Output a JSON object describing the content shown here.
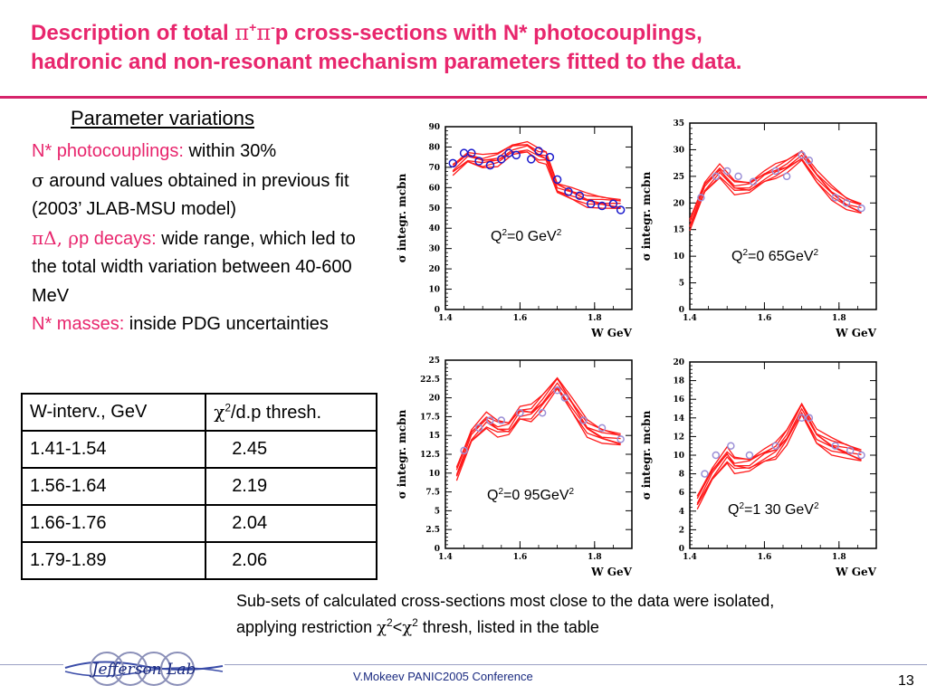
{
  "title": {
    "line1_pre": "Description of total ",
    "pi": "π",
    "plus": "+",
    "minus": "-",
    "line1_post": "p cross-sections with  N* photocouplings,",
    "line2": "hadronic and non-resonant mechanism parameters fitted to the data."
  },
  "params": {
    "heading": "Parameter variations",
    "photocouplings_label": "N* photocouplings:",
    "photocouplings_value": " within 30%",
    "sigma_symbol": "σ",
    "sigma_text": " around values obtained in previous fit (2003’ JLAB-MSU model)",
    "decays_label_symbols": "πΔ, ρ",
    "decays_label_rest": "p decays:",
    "decays_value": " wide range, which led to the total width variation between 40-600 MeV",
    "masses_label": "N* masses:",
    "masses_value": " inside PDG uncertainties"
  },
  "table": {
    "header": {
      "col1": "W-interv., GeV",
      "chi": "χ",
      "sq": "2",
      "col2_rest": "/d.p thresh."
    },
    "rows": [
      {
        "interval": "1.41-1.54",
        "thresh": "2.45"
      },
      {
        "interval": "1.56-1.64",
        "thresh": "2.19"
      },
      {
        "interval": "1.66-1.76",
        "thresh": "2.04"
      },
      {
        "interval": "1.79-1.89",
        "thresh": "2.06"
      }
    ]
  },
  "chart_data": [
    {
      "type": "line",
      "ylabel": "σ integr. mcbn",
      "xlabel": "W GeV",
      "ylim": [
        0,
        90
      ],
      "xlim": [
        1.4,
        1.9
      ],
      "yticks": [
        "0",
        "10",
        "20",
        "30",
        "40",
        "50",
        "60",
        "70",
        "80",
        "90"
      ],
      "xticks": [
        "1.4",
        "1.6",
        "1.8"
      ],
      "label_pre": "Q",
      "label_post": "=0 GeV",
      "label_tail": "2",
      "data_points": [
        [
          1.42,
          72
        ],
        [
          1.45,
          77
        ],
        [
          1.47,
          77
        ],
        [
          1.49,
          73
        ],
        [
          1.52,
          71
        ],
        [
          1.55,
          74
        ],
        [
          1.57,
          77
        ],
        [
          1.59,
          76
        ],
        [
          1.63,
          74
        ],
        [
          1.65,
          78
        ],
        [
          1.68,
          75
        ],
        [
          1.7,
          64
        ],
        [
          1.73,
          58
        ],
        [
          1.76,
          56
        ],
        [
          1.79,
          52
        ],
        [
          1.82,
          51
        ],
        [
          1.85,
          52
        ],
        [
          1.87,
          49
        ]
      ],
      "curve": [
        [
          1.42,
          69
        ],
        [
          1.46,
          75
        ],
        [
          1.5,
          73
        ],
        [
          1.54,
          74
        ],
        [
          1.58,
          79
        ],
        [
          1.62,
          80
        ],
        [
          1.65,
          76
        ],
        [
          1.67,
          75
        ],
        [
          1.7,
          60
        ],
        [
          1.74,
          57
        ],
        [
          1.78,
          54
        ],
        [
          1.82,
          53
        ],
        [
          1.87,
          52
        ]
      ],
      "spread": 3
    },
    {
      "type": "line",
      "ylabel": "σ integr. mcbn",
      "xlabel": "W GeV",
      "ylim": [
        0,
        35
      ],
      "xlim": [
        1.4,
        1.9
      ],
      "yticks": [
        "0",
        "5",
        "10",
        "15",
        "20",
        "25",
        "30",
        "35"
      ],
      "xticks": [
        "1.4",
        "1.6",
        "1.8"
      ],
      "label_pre": "Q",
      "label_post": "=0 65GeV",
      "label_tail": "2",
      "data_points": [
        [
          1.43,
          21
        ],
        [
          1.47,
          25
        ],
        [
          1.5,
          26
        ],
        [
          1.53,
          25
        ],
        [
          1.57,
          24
        ],
        [
          1.63,
          26
        ],
        [
          1.66,
          25
        ],
        [
          1.7,
          29
        ],
        [
          1.72,
          28
        ],
        [
          1.79,
          21
        ],
        [
          1.82,
          20
        ],
        [
          1.86,
          19
        ]
      ],
      "curve": [
        [
          1.4,
          16
        ],
        [
          1.44,
          23
        ],
        [
          1.48,
          26
        ],
        [
          1.52,
          23
        ],
        [
          1.56,
          23
        ],
        [
          1.6,
          25
        ],
        [
          1.63,
          26
        ],
        [
          1.66,
          27
        ],
        [
          1.7,
          29
        ],
        [
          1.74,
          25
        ],
        [
          1.78,
          22
        ],
        [
          1.82,
          20
        ],
        [
          1.86,
          19
        ]
      ],
      "spread": 1.2
    },
    {
      "type": "line",
      "ylabel": "σ integr. mcbn",
      "xlabel": "W GeV",
      "ylim": [
        0,
        25
      ],
      "xlim": [
        1.4,
        1.9
      ],
      "yticks": [
        "0",
        "2.5",
        "5",
        "7.5",
        "10",
        "12.5",
        "15",
        "17.5",
        "20",
        "22.5",
        "25"
      ],
      "xticks": [
        "1.4",
        "1.6",
        "1.8"
      ],
      "label_pre": "Q",
      "label_post": "=0 95GeV",
      "label_tail": "2",
      "data_points": [
        [
          1.45,
          13
        ],
        [
          1.49,
          16
        ],
        [
          1.52,
          17
        ],
        [
          1.55,
          17
        ],
        [
          1.6,
          18
        ],
        [
          1.66,
          18
        ],
        [
          1.7,
          21
        ],
        [
          1.72,
          20
        ],
        [
          1.77,
          17
        ],
        [
          1.82,
          16
        ],
        [
          1.87,
          14.5
        ]
      ],
      "curve": [
        [
          1.43,
          10
        ],
        [
          1.47,
          15
        ],
        [
          1.51,
          17
        ],
        [
          1.54,
          16
        ],
        [
          1.57,
          16
        ],
        [
          1.6,
          18
        ],
        [
          1.63,
          18
        ],
        [
          1.66,
          19.5
        ],
        [
          1.7,
          22
        ],
        [
          1.74,
          19
        ],
        [
          1.78,
          16
        ],
        [
          1.82,
          15
        ],
        [
          1.87,
          14.5
        ]
      ],
      "spread": 1.0
    },
    {
      "type": "line",
      "ylabel": "σ integr. mcbn",
      "xlabel": "W GeV",
      "ylim": [
        0,
        20
      ],
      "xlim": [
        1.4,
        1.9
      ],
      "yticks": [
        "0",
        "2",
        "4",
        "6",
        "8",
        "10",
        "12",
        "14",
        "16",
        "18",
        "20"
      ],
      "xticks": [
        "1.4",
        "1.6",
        "1.8"
      ],
      "label_pre": "Q",
      "label_post": "=1 30 GeV",
      "label_tail": "2",
      "data_points": [
        [
          1.44,
          8
        ],
        [
          1.47,
          10
        ],
        [
          1.51,
          11
        ],
        [
          1.56,
          10
        ],
        [
          1.63,
          11
        ],
        [
          1.7,
          14
        ],
        [
          1.72,
          14
        ],
        [
          1.79,
          11
        ],
        [
          1.83,
          10.5
        ],
        [
          1.86,
          10
        ]
      ],
      "curve": [
        [
          1.42,
          5
        ],
        [
          1.46,
          8
        ],
        [
          1.5,
          10
        ],
        [
          1.52,
          9
        ],
        [
          1.56,
          9
        ],
        [
          1.6,
          10
        ],
        [
          1.63,
          10.5
        ],
        [
          1.66,
          12
        ],
        [
          1.7,
          15
        ],
        [
          1.74,
          12
        ],
        [
          1.78,
          11
        ],
        [
          1.82,
          10.5
        ],
        [
          1.86,
          10
        ]
      ],
      "spread": 0.8
    }
  ],
  "caption": {
    "text1": "Sub-sets of calculated cross-sections most close to the data were isolated, applying restriction ",
    "chi": "χ",
    "sq": "2",
    "lt": "<",
    "text2": " thresh, listed in the table"
  },
  "logo_text": "Jefferson Lab",
  "footer": "V.Mokeev  PANIC2005 Conference",
  "page_number": "13",
  "colors": {
    "title": "#e8266d",
    "curve": "#ff1a1a",
    "data_points": "#1a1acc",
    "rule": "#d6246b"
  }
}
